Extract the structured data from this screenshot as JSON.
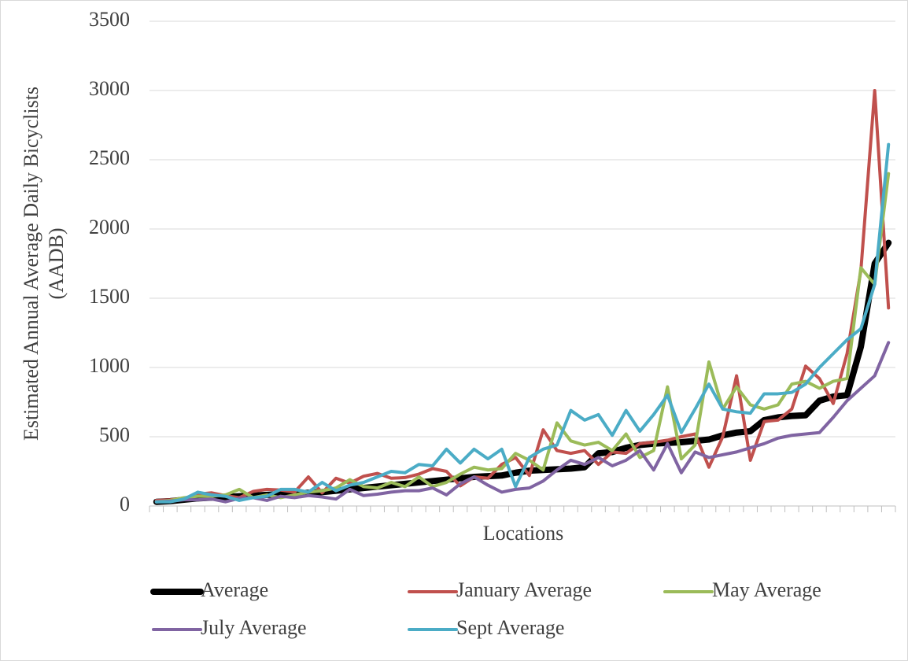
{
  "chart_data": {
    "type": "line",
    "x_label": "Locations",
    "y_label": [
      "Estimated Annual Average Daily Bicyclists",
      "(AADB)"
    ],
    "categories": [
      null,
      null,
      null,
      null,
      null,
      null,
      null,
      null,
      null,
      null,
      null,
      null,
      null,
      null,
      null,
      null,
      null,
      null,
      null,
      null,
      null,
      null,
      null,
      null,
      null,
      null,
      null,
      null,
      null,
      null,
      null,
      null,
      null,
      null,
      null,
      null,
      null,
      null,
      null,
      null,
      null,
      null,
      null,
      null,
      null,
      null,
      null,
      null,
      null,
      null,
      null,
      null,
      null,
      null
    ],
    "ylim": [
      0,
      3500
    ],
    "yticks": [
      0,
      500,
      1000,
      1500,
      2000,
      2500,
      3000,
      3500
    ],
    "grid": true,
    "legend": "bottom",
    "series": [
      {
        "name": "Average",
        "color": "#000000",
        "values": [
          30,
          35,
          45,
          55,
          60,
          65,
          70,
          75,
          80,
          85,
          90,
          95,
          100,
          110,
          120,
          130,
          140,
          150,
          160,
          170,
          180,
          190,
          200,
          210,
          215,
          220,
          240,
          255,
          260,
          265,
          270,
          280,
          380,
          390,
          420,
          440,
          450,
          455,
          460,
          470,
          480,
          510,
          530,
          540,
          620,
          640,
          650,
          655,
          760,
          790,
          800,
          1150,
          1750,
          1900
        ]
      },
      {
        "name": "January Average",
        "color": "#c0504d",
        "values": [
          40,
          45,
          55,
          85,
          95,
          75,
          60,
          105,
          120,
          115,
          100,
          210,
          95,
          200,
          165,
          215,
          235,
          200,
          205,
          230,
          270,
          250,
          145,
          210,
          200,
          300,
          350,
          220,
          550,
          400,
          380,
          400,
          300,
          390,
          380,
          450,
          460,
          475,
          500,
          520,
          280,
          500,
          940,
          330,
          610,
          620,
          700,
          1010,
          920,
          740,
          1100,
          1700,
          3000,
          1430
        ]
      },
      {
        "name": "May Average",
        "color": "#9bbb59",
        "values": [
          30,
          40,
          60,
          70,
          70,
          80,
          120,
          60,
          80,
          60,
          80,
          100,
          110,
          130,
          190,
          140,
          130,
          170,
          140,
          210,
          140,
          170,
          230,
          280,
          260,
          270,
          380,
          330,
          260,
          600,
          470,
          440,
          460,
          400,
          520,
          350,
          400,
          860,
          340,
          440,
          1040,
          700,
          860,
          730,
          700,
          730,
          880,
          900,
          850,
          900,
          920,
          1720,
          1600,
          2400
        ]
      },
      {
        "name": "July Average",
        "color": "#8064a2",
        "values": [
          30,
          35,
          45,
          45,
          50,
          30,
          55,
          60,
          40,
          70,
          60,
          75,
          65,
          50,
          120,
          75,
          85,
          100,
          110,
          110,
          130,
          80,
          160,
          210,
          150,
          100,
          120,
          130,
          180,
          260,
          330,
          300,
          350,
          290,
          330,
          400,
          260,
          450,
          240,
          390,
          350,
          370,
          390,
          420,
          450,
          490,
          510,
          520,
          530,
          640,
          760,
          850,
          940,
          1180
        ]
      },
      {
        "name": "Sept Average",
        "color": "#4bacc6",
        "values": [
          30,
          30,
          50,
          100,
          80,
          70,
          40,
          60,
          70,
          120,
          120,
          100,
          170,
          110,
          150,
          170,
          210,
          250,
          240,
          300,
          290,
          410,
          310,
          410,
          340,
          410,
          140,
          350,
          410,
          440,
          690,
          620,
          660,
          510,
          690,
          540,
          660,
          800,
          530,
          700,
          880,
          700,
          680,
          670,
          810,
          810,
          820,
          880,
          1000,
          1100,
          1200,
          1280,
          1600,
          2610
        ]
      }
    ]
  }
}
